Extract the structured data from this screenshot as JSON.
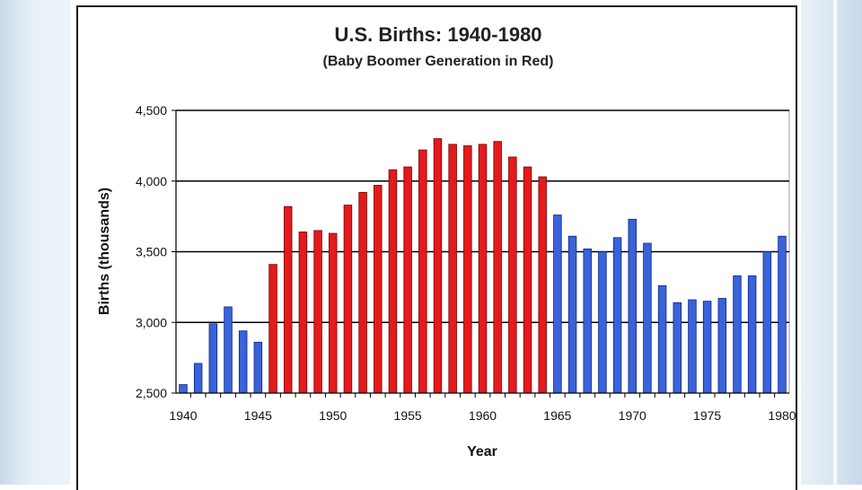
{
  "chart_data": {
    "type": "bar",
    "title": "U.S. Births: 1940-1980",
    "subtitle": "(Baby Boomer Generation in Red)",
    "xlabel": "Year",
    "ylabel": "Births (thousands)",
    "ylim": [
      2500,
      4500
    ],
    "grid": true,
    "yticks": [
      "2,500",
      "3,000",
      "3,500",
      "4,000",
      "4,500"
    ],
    "xtick_labels": [
      "1940",
      "1945",
      "1950",
      "1955",
      "1960",
      "1965",
      "1970",
      "1975",
      "1980"
    ],
    "xtick_values": [
      1940,
      1945,
      1950,
      1955,
      1960,
      1965,
      1970,
      1975,
      1980
    ],
    "colors": {
      "boomer": "#e41a1c",
      "other": "#3a62d9",
      "boomer_edge": "#7a0000",
      "other_edge": "#10248a"
    },
    "series": [
      {
        "name": "Births",
        "x": [
          1940,
          1941,
          1942,
          1943,
          1944,
          1945,
          1946,
          1947,
          1948,
          1949,
          1950,
          1951,
          1952,
          1953,
          1954,
          1955,
          1956,
          1957,
          1958,
          1959,
          1960,
          1961,
          1962,
          1963,
          1964,
          1965,
          1966,
          1967,
          1968,
          1969,
          1970,
          1971,
          1972,
          1973,
          1974,
          1975,
          1976,
          1977,
          1978,
          1979,
          1980
        ],
        "values": [
          2560,
          2710,
          2990,
          3110,
          2940,
          2860,
          3410,
          3820,
          3640,
          3650,
          3630,
          3830,
          3920,
          3970,
          4080,
          4100,
          4220,
          4300,
          4260,
          4250,
          4260,
          4280,
          4170,
          4100,
          4030,
          3760,
          3610,
          3520,
          3500,
          3600,
          3730,
          3560,
          3260,
          3140,
          3160,
          3150,
          3170,
          3330,
          3330,
          3500,
          3610
        ]
      }
    ],
    "boomer_range": [
      1946,
      1964
    ]
  }
}
